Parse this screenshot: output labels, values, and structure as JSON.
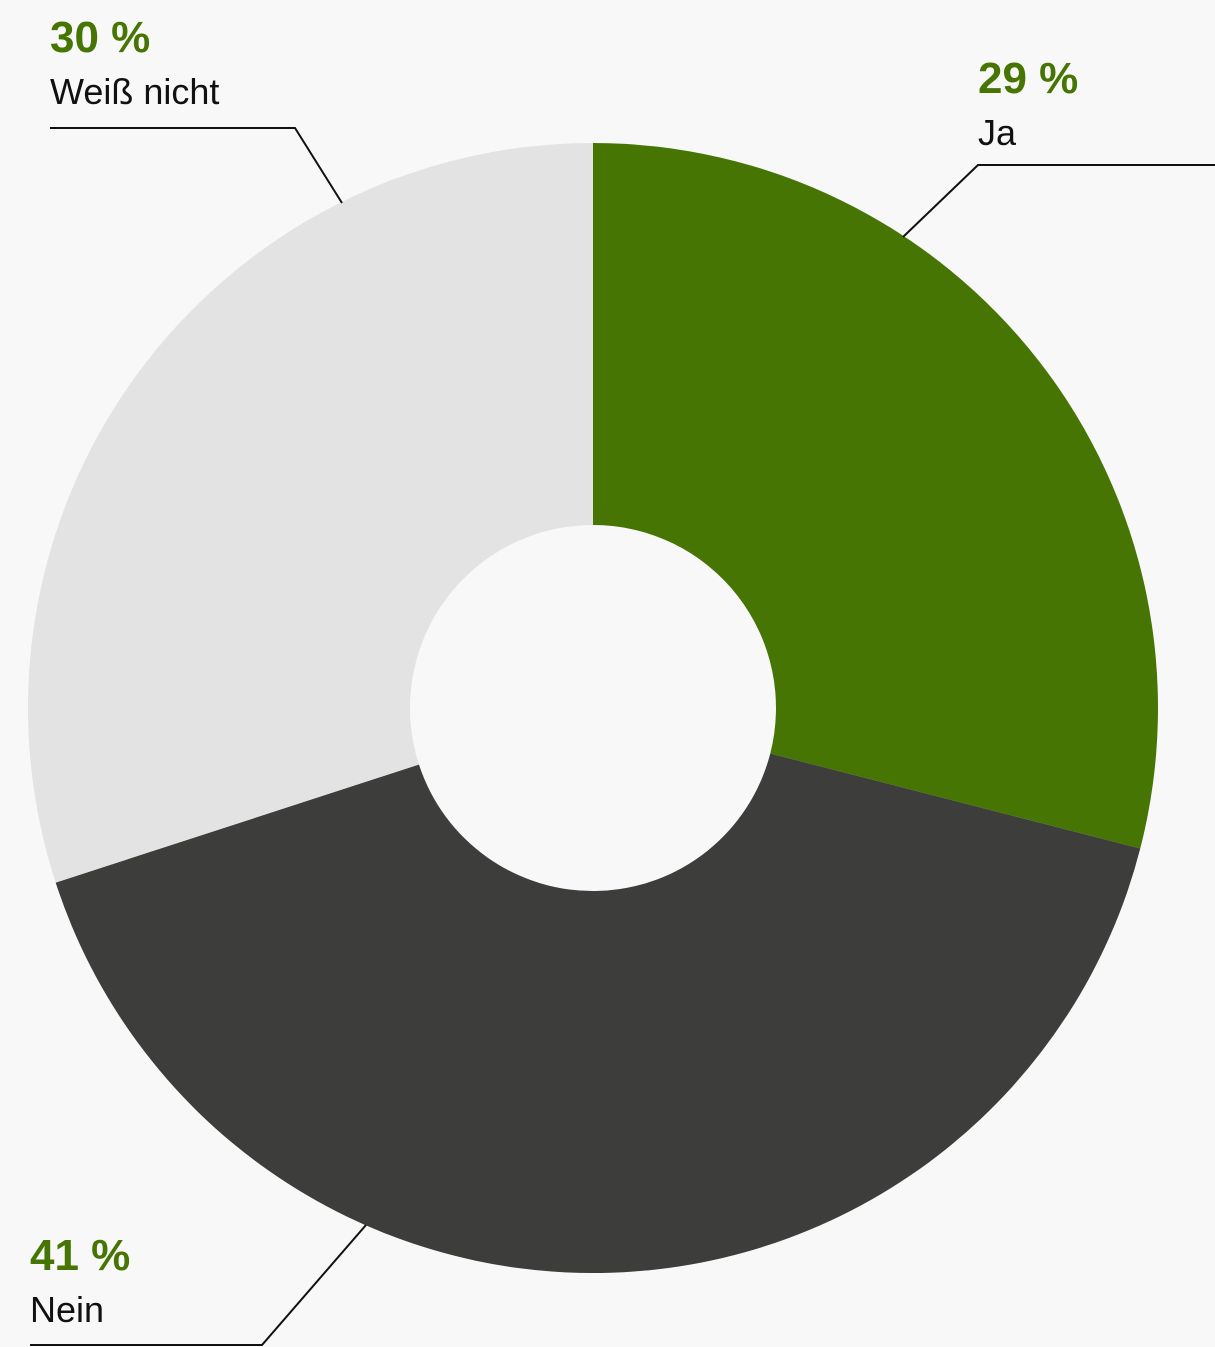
{
  "chart_data": {
    "type": "donut",
    "categories": [
      "Ja",
      "Nein",
      "Weiß nicht"
    ],
    "values": [
      29,
      41,
      30
    ],
    "value_labels": [
      "29 %",
      "41 %",
      "30 %"
    ],
    "colors": [
      "#467504",
      "#3d3d3b",
      "#e3e3e3"
    ]
  }
}
